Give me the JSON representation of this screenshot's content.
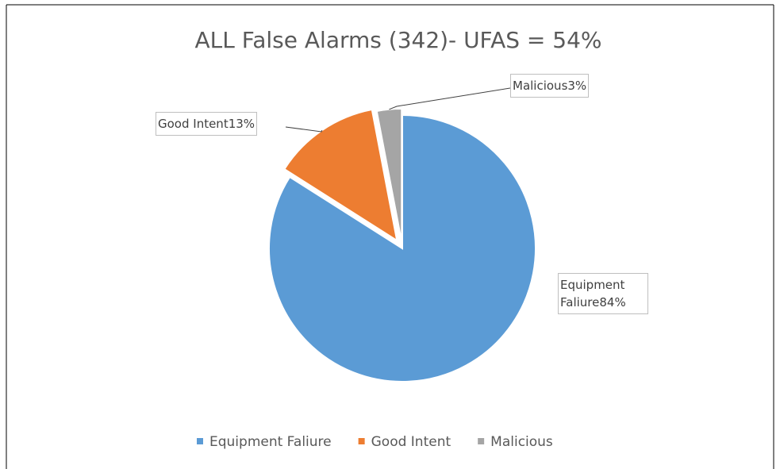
{
  "chart_data": {
    "type": "pie",
    "title": "ALL False Alarms (342)- UFAS = 54%",
    "categories": [
      "Equipment Faliure",
      "Good Intent",
      "Malicious"
    ],
    "values": [
      84,
      13,
      3
    ],
    "value_labels": [
      "84%",
      "13%",
      "3%"
    ],
    "colors": [
      "#5b9bd5",
      "#ed7d31",
      "#a5a5a5"
    ],
    "legend": "bottom"
  }
}
